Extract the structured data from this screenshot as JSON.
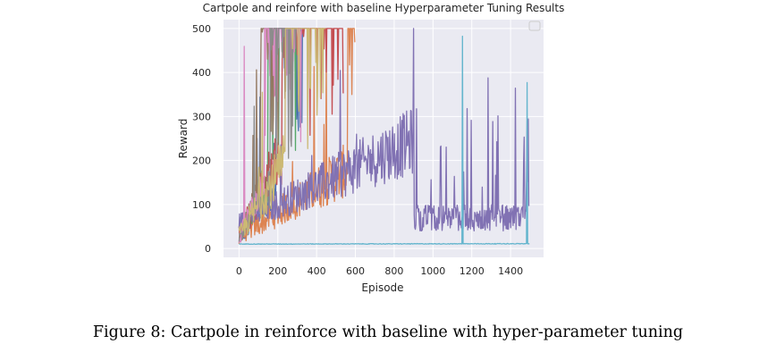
{
  "caption": "Figure 8: Cartpole in reinforce with baseline with hyper-parameter tuning",
  "chart_data": {
    "type": "line",
    "title": "Cartpole and reinfore with baseline Hyperparameter Tuning Results",
    "xlabel": "Episode",
    "ylabel": "Reward",
    "xlim": [
      -80,
      1570
    ],
    "ylim": [
      -20,
      520
    ],
    "xticks": [
      0,
      200,
      400,
      600,
      800,
      1000,
      1200,
      1400
    ],
    "yticks": [
      0,
      100,
      200,
      300,
      400,
      500
    ],
    "grid": true,
    "legend": "top-right, empty",
    "background": "#eaeaf2",
    "series": [
      {
        "color": "#4c72b0",
        "len": 350,
        "solve": 190,
        "base": 15,
        "noise": 60
      },
      {
        "color": "#dd8452",
        "len": 600,
        "solve": 560,
        "base": 20,
        "noise": 90
      },
      {
        "color": "#55a868",
        "len": 300,
        "solve": 150,
        "base": 20,
        "noise": 80
      },
      {
        "color": "#c44e52",
        "len": 540,
        "solve": 220,
        "base": 25,
        "noise": 110
      },
      {
        "color": "#8172b3",
        "len": 1500,
        "solve": 900,
        "base": 50,
        "noise": 110
      },
      {
        "color": "#937860",
        "len": 250,
        "solve": 110,
        "base": 15,
        "noise": 70
      },
      {
        "color": "#da8bc3",
        "len": 330,
        "solve": 130,
        "base": 15,
        "noise": 80
      },
      {
        "color": "#8c8c8c",
        "len": 300,
        "solve": 160,
        "base": 15,
        "noise": 70
      },
      {
        "color": "#ccb974",
        "len": 450,
        "solve": 240,
        "base": 20,
        "noise": 100
      },
      {
        "color": "#64b5cd",
        "len": 1500,
        "solve": 9999,
        "base": 10,
        "noise": 3
      }
    ]
  }
}
